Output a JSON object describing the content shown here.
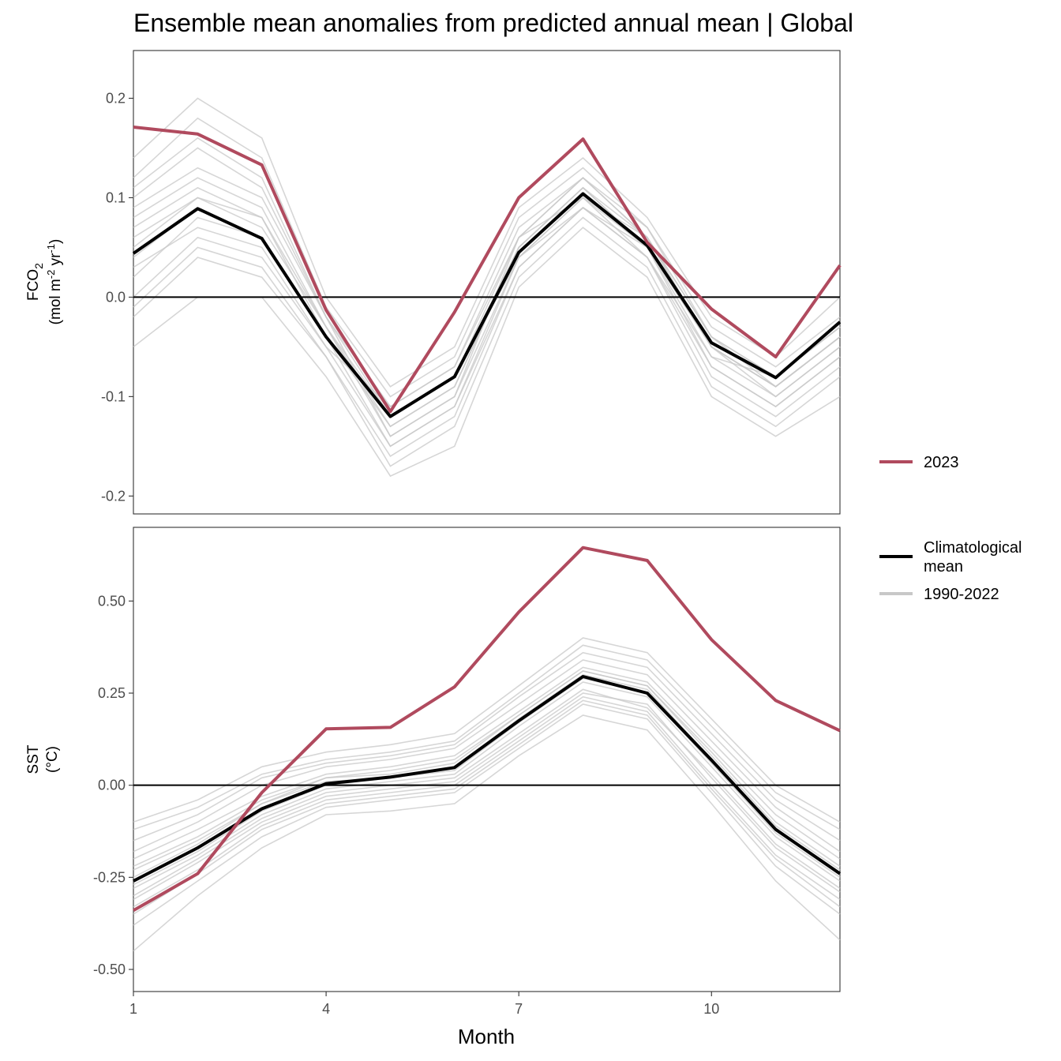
{
  "chart_data": {
    "type": "line",
    "title": "Ensemble mean anomalies from predicted annual mean | Global",
    "xlabel": "Month",
    "xlim": [
      1,
      12
    ],
    "x_ticks": [
      1,
      4,
      7,
      10
    ],
    "x_tick_labels": [
      "1",
      "4",
      "7",
      "10"
    ],
    "x": [
      1,
      2,
      3,
      4,
      5,
      6,
      7,
      8,
      9,
      10,
      11,
      12
    ],
    "grid": false,
    "legend_placement": "right",
    "legend": {
      "year_entry": "2023",
      "clim_entry_line1": "Climatological",
      "clim_entry_line2": "mean",
      "hist_entry": "1990-2022"
    },
    "colors": {
      "y2023": "#b04a5e",
      "climatology": "#000000",
      "history": "#c8c8c8",
      "zero_line": "#000000"
    },
    "panels": [
      {
        "id": "fco2",
        "ylabel_main": "FCO",
        "ylabel_sub": "2",
        "ylabel_units": "(mol m",
        "ylabel_units_exp1": "-2",
        "ylabel_units_mid": " yr",
        "ylabel_units_exp2": "-1",
        "ylabel_units_end": ")",
        "ylim": [
          -0.218,
          0.248
        ],
        "y_ticks": [
          -0.2,
          -0.1,
          0.0,
          0.1,
          0.2
        ],
        "y_tick_labels": [
          "-0.2",
          "-0.1",
          "0.0",
          "0.1",
          "0.2"
        ],
        "series": [
          {
            "name": "2023",
            "values": [
              0.171,
              0.164,
              0.133,
              -0.013,
              -0.115,
              -0.015,
              0.1,
              0.159,
              0.055,
              -0.012,
              -0.06,
              0.032
            ]
          },
          {
            "name": "Climatological mean",
            "values": [
              0.044,
              0.089,
              0.059,
              -0.04,
              -0.12,
              -0.08,
              0.045,
              0.104,
              0.052,
              -0.046,
              -0.081,
              -0.025
            ]
          }
        ],
        "history": [
          [
            0.1,
            0.15,
            0.11,
            -0.02,
            -0.14,
            -0.1,
            0.06,
            0.12,
            0.06,
            -0.05,
            -0.1,
            -0.05
          ],
          [
            0.05,
            0.1,
            0.08,
            -0.04,
            -0.12,
            -0.08,
            0.04,
            0.1,
            0.04,
            -0.06,
            -0.08,
            -0.03
          ],
          [
            0.0,
            0.06,
            0.04,
            -0.05,
            -0.15,
            -0.11,
            0.03,
            0.09,
            0.05,
            -0.07,
            -0.11,
            -0.06
          ],
          [
            0.12,
            0.18,
            0.14,
            -0.01,
            -0.1,
            -0.06,
            0.08,
            0.13,
            0.07,
            -0.03,
            -0.07,
            -0.02
          ],
          [
            -0.02,
            0.04,
            0.02,
            -0.06,
            -0.17,
            -0.13,
            0.02,
            0.08,
            0.03,
            -0.09,
            -0.13,
            -0.08
          ],
          [
            0.08,
            0.12,
            0.09,
            -0.03,
            -0.13,
            -0.09,
            0.05,
            0.11,
            0.05,
            -0.05,
            -0.09,
            -0.04
          ],
          [
            0.03,
            0.07,
            0.05,
            -0.05,
            -0.11,
            -0.07,
            0.06,
            0.1,
            0.06,
            -0.04,
            -0.08,
            -0.03
          ],
          [
            0.14,
            0.2,
            0.16,
            0.0,
            -0.09,
            -0.05,
            0.09,
            0.14,
            0.08,
            -0.02,
            -0.06,
            0.0
          ],
          [
            -0.05,
            0.0,
            0.0,
            -0.08,
            -0.18,
            -0.15,
            0.01,
            0.07,
            0.02,
            -0.1,
            -0.14,
            -0.1
          ],
          [
            0.07,
            0.11,
            0.08,
            -0.03,
            -0.14,
            -0.1,
            0.04,
            0.1,
            0.05,
            -0.06,
            -0.1,
            -0.05
          ],
          [
            0.09,
            0.13,
            0.1,
            -0.02,
            -0.12,
            -0.08,
            0.06,
            0.12,
            0.06,
            -0.04,
            -0.09,
            -0.04
          ],
          [
            0.02,
            0.08,
            0.06,
            -0.04,
            -0.15,
            -0.11,
            0.04,
            0.09,
            0.04,
            -0.07,
            -0.11,
            -0.06
          ],
          [
            0.11,
            0.16,
            0.12,
            -0.02,
            -0.11,
            -0.07,
            0.07,
            0.12,
            0.07,
            -0.04,
            -0.08,
            -0.03
          ],
          [
            0.04,
            0.09,
            0.06,
            -0.04,
            -0.13,
            -0.09,
            0.05,
            0.11,
            0.05,
            -0.05,
            -0.09,
            -0.04
          ],
          [
            -0.01,
            0.05,
            0.03,
            -0.06,
            -0.16,
            -0.12,
            0.03,
            0.09,
            0.04,
            -0.08,
            -0.12,
            -0.07
          ],
          [
            0.06,
            0.1,
            0.07,
            -0.03,
            -0.12,
            -0.08,
            0.05,
            0.11,
            0.06,
            -0.05,
            -0.09,
            -0.04
          ]
        ]
      },
      {
        "id": "sst",
        "ylabel_main": "SST",
        "ylabel_units": "(°C)",
        "ylim": [
          -0.56,
          0.7
        ],
        "y_ticks": [
          -0.5,
          -0.25,
          0.0,
          0.25,
          0.5
        ],
        "y_tick_labels": [
          "-0.50",
          "-0.25",
          "0.00",
          "0.25",
          "0.50"
        ],
        "series": [
          {
            "name": "2023",
            "values": [
              -0.34,
              -0.24,
              -0.02,
              0.153,
              0.157,
              0.267,
              0.47,
              0.645,
              0.61,
              0.395,
              0.23,
              0.148
            ]
          },
          {
            "name": "Climatological mean",
            "values": [
              -0.26,
              -0.17,
              -0.064,
              0.004,
              0.022,
              0.048,
              0.175,
              0.295,
              0.25,
              0.068,
              -0.12,
              -0.24
            ]
          }
        ],
        "history": [
          [
            -0.2,
            -0.12,
            -0.03,
            0.03,
            0.05,
            0.08,
            0.2,
            0.32,
            0.28,
            0.1,
            -0.08,
            -0.2
          ],
          [
            -0.3,
            -0.2,
            -0.09,
            -0.02,
            0.0,
            0.02,
            0.14,
            0.26,
            0.21,
            0.03,
            -0.16,
            -0.28
          ],
          [
            -0.25,
            -0.16,
            -0.05,
            0.01,
            0.02,
            0.05,
            0.18,
            0.3,
            0.26,
            0.07,
            -0.12,
            -0.24
          ],
          [
            -0.38,
            -0.26,
            -0.14,
            -0.06,
            -0.04,
            -0.02,
            0.1,
            0.22,
            0.18,
            -0.02,
            -0.22,
            -0.35
          ],
          [
            -0.15,
            -0.08,
            0.02,
            0.06,
            0.08,
            0.11,
            0.24,
            0.36,
            0.32,
            0.14,
            -0.04,
            -0.15
          ],
          [
            -0.28,
            -0.19,
            -0.08,
            -0.01,
            0.01,
            0.03,
            0.16,
            0.28,
            0.24,
            0.05,
            -0.14,
            -0.26
          ],
          [
            -0.1,
            -0.04,
            0.05,
            0.09,
            0.11,
            0.14,
            0.27,
            0.4,
            0.36,
            0.18,
            0.0,
            -0.1
          ],
          [
            -0.33,
            -0.23,
            -0.11,
            -0.04,
            -0.02,
            0.0,
            0.12,
            0.24,
            0.2,
            0.0,
            -0.19,
            -0.31
          ],
          [
            -0.22,
            -0.14,
            -0.04,
            0.02,
            0.04,
            0.07,
            0.19,
            0.31,
            0.27,
            0.09,
            -0.1,
            -0.22
          ],
          [
            -0.45,
            -0.3,
            -0.17,
            -0.08,
            -0.07,
            -0.05,
            0.08,
            0.19,
            0.15,
            -0.05,
            -0.26,
            -0.42
          ],
          [
            -0.18,
            -0.1,
            0.0,
            0.05,
            0.07,
            0.1,
            0.22,
            0.34,
            0.3,
            0.12,
            -0.06,
            -0.18
          ],
          [
            -0.27,
            -0.18,
            -0.07,
            0.0,
            0.02,
            0.04,
            0.17,
            0.29,
            0.25,
            0.06,
            -0.13,
            -0.25
          ],
          [
            -0.12,
            -0.06,
            0.03,
            0.07,
            0.09,
            0.12,
            0.25,
            0.38,
            0.34,
            0.16,
            -0.02,
            -0.12
          ],
          [
            -0.35,
            -0.24,
            -0.12,
            -0.05,
            -0.03,
            -0.01,
            0.11,
            0.23,
            0.19,
            -0.01,
            -0.2,
            -0.33
          ],
          [
            -0.23,
            -0.15,
            -0.05,
            0.02,
            0.03,
            0.06,
            0.19,
            0.31,
            0.27,
            0.08,
            -0.11,
            -0.23
          ],
          [
            -0.31,
            -0.21,
            -0.1,
            -0.03,
            -0.01,
            0.01,
            0.13,
            0.25,
            0.22,
            0.02,
            -0.17,
            -0.29
          ]
        ]
      }
    ]
  }
}
